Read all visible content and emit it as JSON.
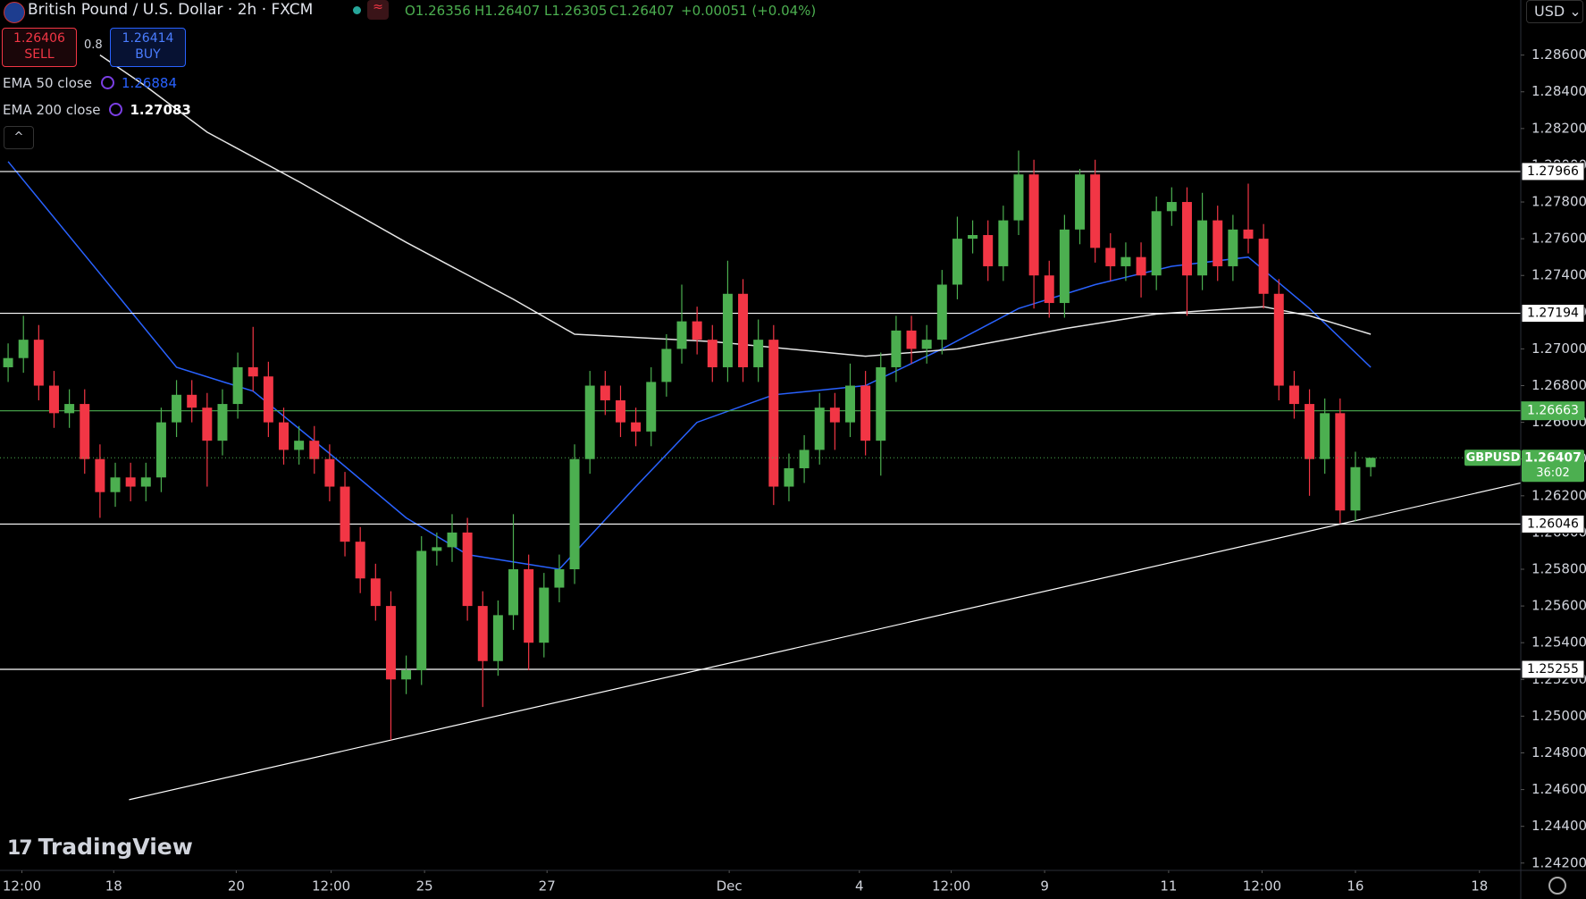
{
  "header": {
    "title": "British Pound / U.S. Dollar · 2h · FXCM",
    "ohlc": [
      "O1.26356",
      "H1.26407",
      "L1.26305",
      "C1.26407",
      "+0.00051 (+0.04%)"
    ],
    "currency": "USD",
    "brand": "TradingView"
  },
  "trade": {
    "sell_price": "1.26406",
    "sell_label": "SELL",
    "spread": "0.8",
    "buy_price": "1.26414",
    "buy_label": "BUY"
  },
  "chart_data": {
    "type": "candlestick",
    "open": [
      1.269,
      1.2695,
      1.2705,
      1.268,
      1.2665,
      1.267,
      1.264,
      1.2622,
      1.263,
      1.2625,
      1.263,
      1.266,
      1.2675,
      1.2668,
      1.265,
      1.267,
      1.269,
      1.2685,
      1.266,
      1.2645,
      1.265,
      1.264,
      1.2625,
      1.2595,
      1.2575,
      1.256,
      1.252,
      1.2525,
      1.259,
      1.2592,
      1.26,
      1.256,
      1.253,
      1.2555,
      1.258,
      1.254,
      1.257,
      1.258,
      1.264,
      1.268,
      1.2672,
      1.266,
      1.2655,
      1.2682,
      1.27,
      1.2715,
      1.2705,
      1.269,
      1.273,
      1.269,
      1.2705,
      1.2625,
      1.2635,
      1.2645,
      1.2668,
      1.266,
      1.268,
      1.265,
      1.269,
      1.271,
      1.27,
      1.2705,
      1.2735,
      1.276,
      1.2762,
      1.2745,
      1.277,
      1.2795,
      1.274,
      1.2725,
      1.2765,
      1.2795,
      1.2755,
      1.2745,
      1.275,
      1.274,
      1.2775,
      1.278,
      1.274,
      1.277,
      1.2745,
      1.2765,
      1.276,
      1.273,
      1.268,
      1.267,
      1.264,
      1.2665,
      1.2612,
      1.26356
    ],
    "high": [
      1.2703,
      1.2718,
      1.2713,
      1.2688,
      1.2678,
      1.2678,
      1.2648,
      1.2638,
      1.2638,
      1.2638,
      1.2668,
      1.2683,
      1.2683,
      1.2676,
      1.2678,
      1.2698,
      1.2712,
      1.2693,
      1.2668,
      1.2658,
      1.2658,
      1.2648,
      1.2633,
      1.2603,
      1.2583,
      1.2568,
      1.2533,
      1.2598,
      1.26,
      1.261,
      1.2608,
      1.2568,
      1.2563,
      1.261,
      1.2588,
      1.2578,
      1.2588,
      1.2648,
      1.2688,
      1.2688,
      1.268,
      1.2668,
      1.269,
      1.2708,
      1.2735,
      1.2723,
      1.2713,
      1.2748,
      1.2738,
      1.2716,
      1.2713,
      1.2643,
      1.2653,
      1.2676,
      1.2676,
      1.2692,
      1.2688,
      1.2698,
      1.2718,
      1.2718,
      1.2713,
      1.2743,
      1.2772,
      1.277,
      1.277,
      1.2778,
      1.2808,
      1.2803,
      1.2748,
      1.2773,
      1.2798,
      1.2803,
      1.2763,
      1.2758,
      1.2758,
      1.2783,
      1.2788,
      1.2788,
      1.2785,
      1.2778,
      1.2773,
      1.279,
      1.2768,
      1.2738,
      1.2688,
      1.2678,
      1.2673,
      1.2673,
      1.2644,
      1.26407
    ],
    "low": [
      1.2682,
      1.2687,
      1.2672,
      1.2657,
      1.2657,
      1.2632,
      1.2608,
      1.2614,
      1.2617,
      1.2617,
      1.2622,
      1.2652,
      1.266,
      1.2625,
      1.2642,
      1.2662,
      1.2677,
      1.2652,
      1.2637,
      1.2637,
      1.2632,
      1.2617,
      1.2587,
      1.2567,
      1.2552,
      1.2487,
      1.2512,
      1.2517,
      1.2582,
      1.2584,
      1.2552,
      1.2505,
      1.2522,
      1.2547,
      1.2525,
      1.2532,
      1.2562,
      1.2572,
      1.2632,
      1.2664,
      1.2652,
      1.2647,
      1.2647,
      1.2674,
      1.2692,
      1.2697,
      1.2682,
      1.2682,
      1.2682,
      1.2682,
      1.2615,
      1.2617,
      1.2627,
      1.2637,
      1.2645,
      1.2652,
      1.2642,
      1.2631,
      1.2682,
      1.2692,
      1.2692,
      1.2697,
      1.2727,
      1.2752,
      1.2737,
      1.2737,
      1.2762,
      1.2722,
      1.2717,
      1.2717,
      1.2757,
      1.2747,
      1.2737,
      1.2737,
      1.2728,
      1.2732,
      1.2767,
      1.2718,
      1.2732,
      1.2737,
      1.2737,
      1.2752,
      1.2722,
      1.2672,
      1.2662,
      1.262,
      1.2632,
      1.2605,
      1.2606,
      1.26305
    ],
    "close": [
      1.2695,
      1.2705,
      1.268,
      1.2665,
      1.267,
      1.264,
      1.2622,
      1.263,
      1.2625,
      1.263,
      1.266,
      1.2675,
      1.2668,
      1.265,
      1.267,
      1.269,
      1.2685,
      1.266,
      1.2645,
      1.265,
      1.264,
      1.2625,
      1.2595,
      1.2575,
      1.256,
      1.252,
      1.2525,
      1.259,
      1.2592,
      1.26,
      1.256,
      1.253,
      1.2555,
      1.258,
      1.254,
      1.257,
      1.258,
      1.264,
      1.268,
      1.2672,
      1.266,
      1.2655,
      1.2682,
      1.27,
      1.2715,
      1.2705,
      1.269,
      1.273,
      1.269,
      1.2705,
      1.2625,
      1.2635,
      1.2645,
      1.2668,
      1.266,
      1.268,
      1.265,
      1.269,
      1.271,
      1.27,
      1.2705,
      1.2735,
      1.276,
      1.2762,
      1.2745,
      1.277,
      1.2795,
      1.274,
      1.2725,
      1.2765,
      1.2795,
      1.2755,
      1.2745,
      1.275,
      1.274,
      1.2775,
      1.278,
      1.274,
      1.277,
      1.2745,
      1.2765,
      1.276,
      1.273,
      1.268,
      1.267,
      1.264,
      1.2665,
      1.2612,
      1.26356,
      1.26407
    ],
    "up_color": "#4caf50",
    "down_color": "#f23645",
    "series": [
      {
        "name": "EMA 50 close",
        "legend_value": "1.26884",
        "color": "#2962ff",
        "x": [
          0,
          6,
          11,
          16,
          21,
          26,
          30,
          36,
          41,
          45,
          50,
          56,
          61,
          66,
          71,
          76,
          81,
          85,
          89
        ],
        "values": [
          1.2802,
          1.2741,
          1.269,
          1.2677,
          1.2643,
          1.2608,
          1.2588,
          1.258,
          1.2625,
          1.266,
          1.2675,
          1.268,
          1.27,
          1.2722,
          1.2735,
          1.2745,
          1.275,
          1.2722,
          1.269
        ]
      },
      {
        "name": "EMA 200 close",
        "legend_value": "1.27083",
        "color": "#e6e6e6",
        "x": [
          6,
          9,
          13,
          19,
          26,
          33,
          37,
          46,
          56,
          62,
          69,
          75,
          82,
          85,
          89
        ],
        "values": [
          1.286,
          1.2843,
          1.2818,
          1.2791,
          1.2758,
          1.2727,
          1.2708,
          1.2704,
          1.2696,
          1.27,
          1.2711,
          1.2719,
          1.2723,
          1.2718,
          1.2708
        ]
      }
    ],
    "levels": [
      {
        "value": 1.27966,
        "color": "#ffffff"
      },
      {
        "value": 1.27194,
        "color": "#ffffff"
      },
      {
        "value": 1.26663,
        "color": "#4caf50"
      },
      {
        "value": 1.26046,
        "color": "#ffffff"
      },
      {
        "value": 1.25255,
        "color": "#ffffff"
      }
    ],
    "trendline": {
      "x": [
        7.9,
        98.8
      ],
      "values": [
        1.24545,
        1.2627
      ],
      "color": "#ffffff"
    },
    "last_price": {
      "symbol": "GBPUSD",
      "value": 1.26407,
      "countdown": "36:02",
      "color": "#4caf50"
    },
    "xlim": [
      -0.53,
      98.8
    ],
    "xticks": [
      {
        "value": 0.9,
        "label": "12:00"
      },
      {
        "value": 6.9,
        "label": "18"
      },
      {
        "value": 14.9,
        "label": "20"
      },
      {
        "value": 21.1,
        "label": "12:00"
      },
      {
        "value": 27.2,
        "label": "25"
      },
      {
        "value": 35.2,
        "label": "27"
      },
      {
        "value": 47.1,
        "label": "Dec"
      },
      {
        "value": 55.6,
        "label": "4"
      },
      {
        "value": 61.6,
        "label": "12:00"
      },
      {
        "value": 67.7,
        "label": "9"
      },
      {
        "value": 75.8,
        "label": "11"
      },
      {
        "value": 81.9,
        "label": "12:00"
      },
      {
        "value": 88.0,
        "label": "16"
      },
      {
        "value": 96.1,
        "label": "18"
      }
    ],
    "ylim": [
      1.2416,
      1.289
    ],
    "yticks": [
      {
        "value": 1.242,
        "label": "1.24200"
      },
      {
        "value": 1.244,
        "label": "1.24400"
      },
      {
        "value": 1.246,
        "label": "1.24600"
      },
      {
        "value": 1.248,
        "label": "1.24800"
      },
      {
        "value": 1.25,
        "label": "1.25000"
      },
      {
        "value": 1.252,
        "label": "1.25200"
      },
      {
        "value": 1.254,
        "label": "1.25400"
      },
      {
        "value": 1.256,
        "label": "1.25600"
      },
      {
        "value": 1.258,
        "label": "1.25800"
      },
      {
        "value": 1.26,
        "label": "1.26000"
      },
      {
        "value": 1.262,
        "label": "1.26200"
      },
      {
        "value": 1.264,
        "label": "1.26400"
      },
      {
        "value": 1.266,
        "label": "1.26600"
      },
      {
        "value": 1.268,
        "label": "1.26800"
      },
      {
        "value": 1.27,
        "label": "1.27000"
      },
      {
        "value": 1.272,
        "label": "1.27200"
      },
      {
        "value": 1.274,
        "label": "1.27400"
      },
      {
        "value": 1.276,
        "label": "1.27600"
      },
      {
        "value": 1.278,
        "label": "1.27800"
      },
      {
        "value": 1.28,
        "label": "1.28000"
      },
      {
        "value": 1.282,
        "label": "1.28200"
      },
      {
        "value": 1.284,
        "label": "1.28400"
      },
      {
        "value": 1.286,
        "label": "1.28600"
      }
    ],
    "grid": false
  }
}
